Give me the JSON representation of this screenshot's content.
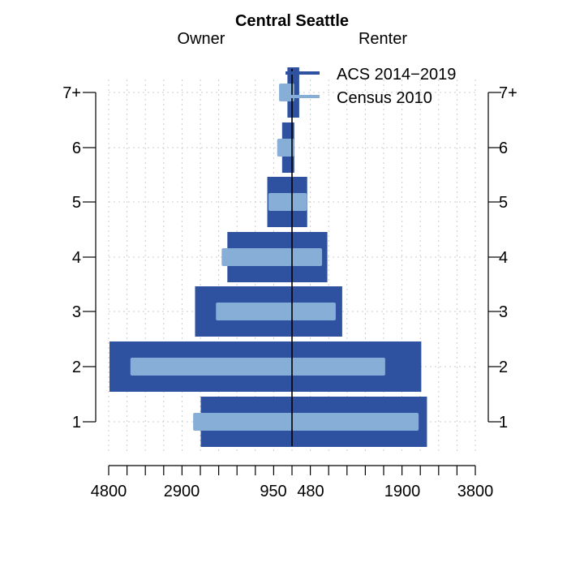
{
  "chart_data": {
    "type": "bar",
    "orientation": "horizontal",
    "layout": "population-pyramid",
    "title": "Central Seattle",
    "left_label": "Owner",
    "right_label": "Renter",
    "categories": [
      "1",
      "2",
      "3",
      "4",
      "5",
      "6",
      "7+"
    ],
    "x_tick_labels": [
      "4800",
      "2900",
      "950",
      "480",
      "1900",
      "3800"
    ],
    "xlim_left": [
      0,
      4800
    ],
    "xlim_right": [
      0,
      4800
    ],
    "grid": true,
    "legend_position": "top-right",
    "series": [
      {
        "name": "ACS 2014−2019",
        "color": "#2f52a0",
        "owner": [
          2400,
          4800,
          2550,
          1700,
          650,
          260,
          120
        ],
        "renter": [
          3550,
          3400,
          1320,
          930,
          400,
          60,
          190
        ]
      },
      {
        "name": "Census 2010",
        "color": "#86aed6",
        "owner": [
          2600,
          4250,
          2000,
          1850,
          620,
          390,
          340
        ],
        "renter": [
          3330,
          2450,
          1150,
          790,
          390,
          50,
          60
        ]
      }
    ]
  }
}
